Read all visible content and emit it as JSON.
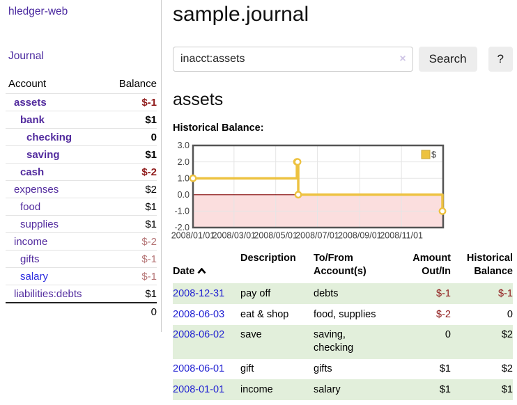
{
  "app": {
    "brand": "hledger-web",
    "nav_journal": "Journal"
  },
  "sidebar": {
    "columns": {
      "account": "Account",
      "balance": "Balance"
    },
    "accounts": [
      {
        "name": "assets",
        "balance": "$-1",
        "depth": 1,
        "bold": true,
        "balance_style": "neg"
      },
      {
        "name": "bank",
        "balance": "$1",
        "depth": 2,
        "bold": true,
        "balance_style": ""
      },
      {
        "name": "checking",
        "balance": "0",
        "depth": 3,
        "bold": true,
        "balance_style": ""
      },
      {
        "name": "saving",
        "balance": "$1",
        "depth": 3,
        "bold": true,
        "balance_style": ""
      },
      {
        "name": "cash",
        "balance": "$-2",
        "depth": 2,
        "bold": true,
        "balance_style": "neg"
      },
      {
        "name": "expenses",
        "balance": "$2",
        "depth": 1,
        "bold": false,
        "balance_style": ""
      },
      {
        "name": "food",
        "balance": "$1",
        "depth": 2,
        "bold": false,
        "balance_style": ""
      },
      {
        "name": "supplies",
        "balance": "$1",
        "depth": 2,
        "bold": false,
        "balance_style": ""
      },
      {
        "name": "income",
        "balance": "$-2",
        "depth": 1,
        "bold": false,
        "balance_style": "neg-dim"
      },
      {
        "name": "gifts",
        "balance": "$-1",
        "depth": 2,
        "bold": false,
        "balance_style": "neg-dim"
      },
      {
        "name": "salary",
        "balance": "$-1",
        "depth": 2,
        "bold": false,
        "balance_style": "neg-dim",
        "link_style": "unvisited"
      },
      {
        "name": "liabilities:debts",
        "balance": "$1",
        "depth": 1,
        "bold": false,
        "balance_style": ""
      }
    ],
    "total": "0"
  },
  "header": {
    "title": "sample.journal"
  },
  "search": {
    "value": "inacct:assets",
    "clear_glyph": "×",
    "button": "Search",
    "help_button": "?"
  },
  "account_page": {
    "heading": "assets",
    "chart_title": "Historical Balance:"
  },
  "chart_data": {
    "type": "line",
    "step": true,
    "title": "Historical Balance:",
    "series": [
      {
        "name": "$",
        "color": "#EDC240",
        "points": [
          {
            "date": "2008/01/01",
            "day": 0,
            "value": 1
          },
          {
            "date": "2008/06/01",
            "day": 152,
            "value": 2
          },
          {
            "date": "2008/06/02",
            "day": 153,
            "value": 2
          },
          {
            "date": "2008/06/03",
            "day": 154,
            "value": 0
          },
          {
            "date": "2008/12/31",
            "day": 365,
            "value": -1
          }
        ]
      }
    ],
    "ylim": [
      -2,
      3
    ],
    "yticks": [
      {
        "label": "3.0",
        "value": 3
      },
      {
        "label": "2.0",
        "value": 2
      },
      {
        "label": "1.0",
        "value": 1
      },
      {
        "label": "0.0",
        "value": 0
      },
      {
        "label": "-1.0",
        "value": -1
      },
      {
        "label": "-2.0",
        "value": -2
      }
    ],
    "xticks": [
      {
        "label": "2008/01/01",
        "day": 0
      },
      {
        "label": "2008/03/01",
        "day": 60
      },
      {
        "label": "2008/05/01",
        "day": 121
      },
      {
        "label": "2008/07/01",
        "day": 182
      },
      {
        "label": "2008/09/01",
        "day": 244
      },
      {
        "label": "2008/11/01",
        "day": 305
      }
    ],
    "x_total_days": 366,
    "grid": true,
    "legend_position": "top-right",
    "legend_label": "$",
    "negative_fill": "#fbdede",
    "zero_line_color": "#800000",
    "grid_color": "#e5e5e5",
    "border_color": "#545454",
    "tick_color": "#3f3f3f"
  },
  "register": {
    "columns": [
      "Date",
      "Description",
      "To/From\nAccount(s)",
      "Amount\nOut/In",
      "Historical\nBalance"
    ],
    "sort": "ascending",
    "rows": [
      {
        "date": "2008-12-31",
        "description": "pay off",
        "accounts": "debts",
        "amount": "$-1",
        "balance": "$-1"
      },
      {
        "date": "2008-06-03",
        "description": "eat & shop",
        "accounts": "food, supplies",
        "amount": "$-2",
        "balance": "0"
      },
      {
        "date": "2008-06-02",
        "description": "save",
        "accounts": "saving, checking",
        "amount": "0",
        "balance": "$2"
      },
      {
        "date": "2008-06-01",
        "description": "gift",
        "accounts": "gifts",
        "amount": "$1",
        "balance": "$2"
      },
      {
        "date": "2008-01-01",
        "description": "income",
        "accounts": "salary",
        "amount": "$1",
        "balance": "$1"
      }
    ]
  }
}
